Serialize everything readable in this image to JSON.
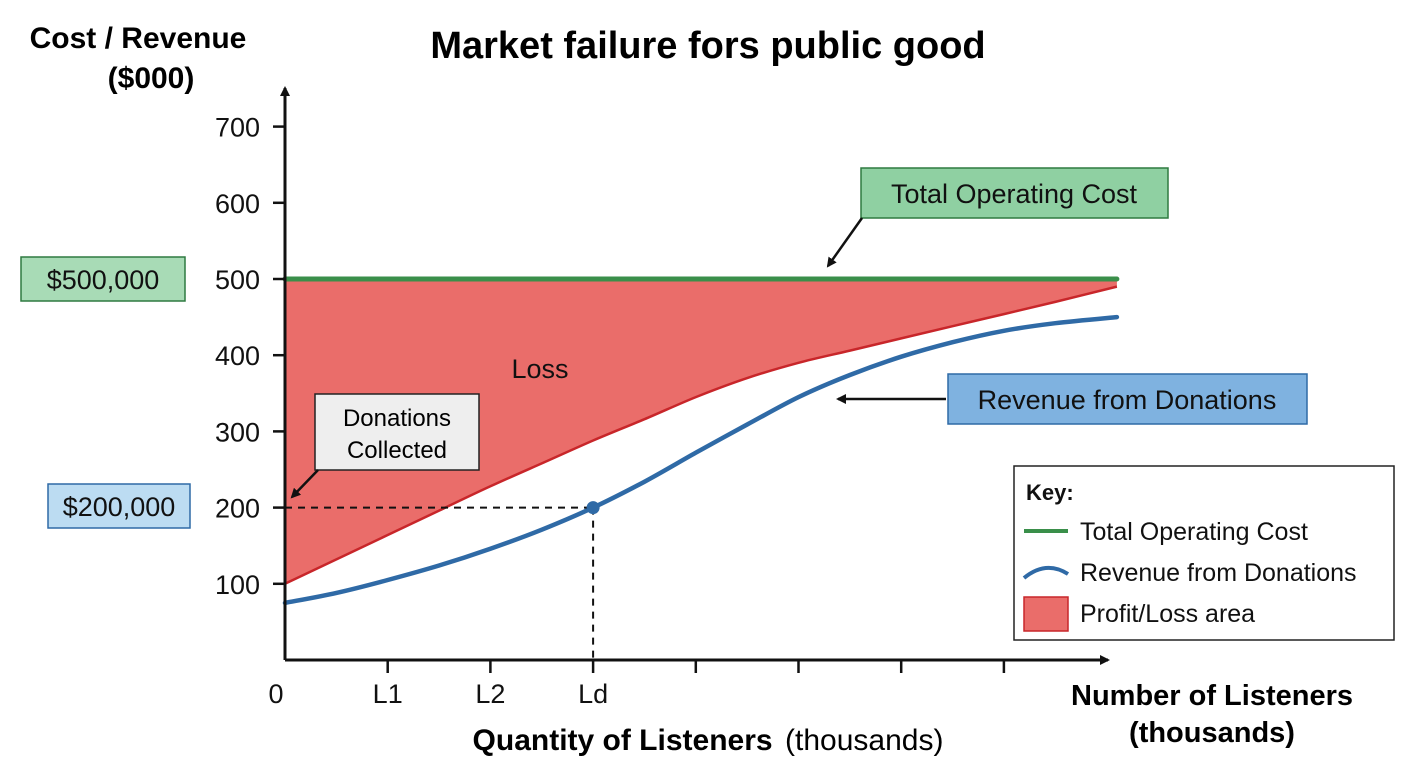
{
  "chart_data": {
    "type": "line",
    "title": "Market failure fors public good",
    "ylabel_line1": "Cost / Revenue",
    "ylabel_line2": "($000)",
    "xlabel_bold": "Quantity of Listeners",
    "xlabel_normal": "(thousands)",
    "xlabel_right_line1": "Number of Listeners",
    "xlabel_right_line2": "(thousands)",
    "ylim": [
      0,
      750
    ],
    "y_ticks": [
      100,
      200,
      300,
      400,
      500,
      600,
      700
    ],
    "x_tick_labels": [
      "0",
      "L1",
      "L2",
      "Ld"
    ],
    "x_tick_count": 8,
    "series": [
      {
        "name": "Total Operating Cost",
        "color": "#3a8f4a",
        "x": [
          0,
          8.1
        ],
        "y": [
          500,
          500
        ]
      },
      {
        "name": "Revenue from Donations",
        "color": "#2f6aa6",
        "x": [
          0,
          0.5,
          1,
          1.5,
          2,
          2.5,
          3,
          3.5,
          4,
          4.5,
          5,
          5.5,
          6,
          6.5,
          7,
          7.5,
          8.1
        ],
        "y": [
          75,
          88,
          105,
          124,
          146,
          171,
          200,
          234,
          272,
          309,
          345,
          374,
          398,
          417,
          432,
          442,
          450
        ]
      }
    ],
    "loss_boundary": {
      "x": [
        0,
        0.5,
        1,
        1.5,
        2,
        2.5,
        3,
        3.5,
        4,
        4.5,
        5,
        5.5,
        6,
        6.5,
        7,
        7.5,
        8.1
      ],
      "y": [
        100,
        132,
        164,
        196,
        228,
        258,
        288,
        316,
        345,
        370,
        390,
        406,
        422,
        438,
        454,
        470,
        490
      ]
    },
    "highlight_point": {
      "x": 3,
      "y": 200
    },
    "annotations": {
      "loss": "Loss",
      "donations_collected_line1": "Donations",
      "donations_collected_line2": "Collected",
      "total_operating_cost": "Total Operating Cost",
      "revenue_from_donations": "Revenue from Donations",
      "y500_box": "$500,000",
      "y200_box": "$200,000"
    },
    "legend": {
      "placement": "bottom-right",
      "header": "Key:",
      "items": [
        {
          "label": "Total Operating Cost",
          "kind": "line",
          "color": "#3a8f4a"
        },
        {
          "label": "Revenue from Donations",
          "kind": "curve",
          "color": "#2f6aa6"
        },
        {
          "label": "Profit/Loss area",
          "kind": "area",
          "color": "#ea6d6a"
        }
      ]
    },
    "colors": {
      "loss_fill": "#ea6d6a",
      "loss_edge": "#c8262a",
      "green_box": "#a8dbb6",
      "blue_box": "#bcdcf2",
      "blue_box_strong": "#7fb2e0",
      "gray_box": "#eeeeee"
    }
  }
}
